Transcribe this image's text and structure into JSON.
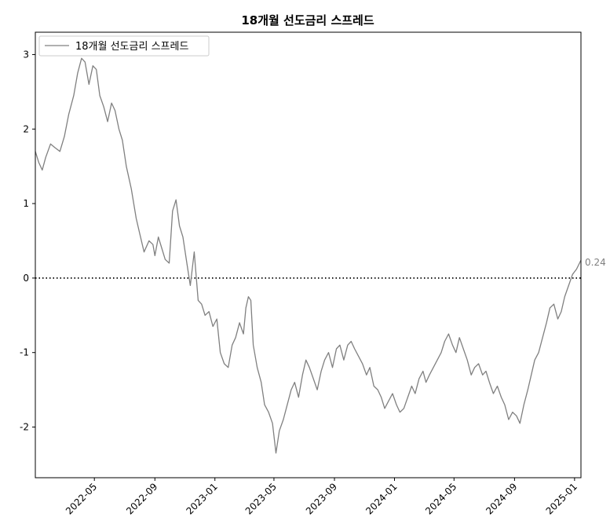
{
  "chart_data": {
    "type": "line",
    "title": "18개월 선도금리 스프레드",
    "xlabel": "",
    "ylabel": "",
    "x_range": [
      "2022-01-01",
      "2025-01-14"
    ],
    "ylim": [
      -2.68,
      3.3
    ],
    "x_ticks": [
      "2022-05",
      "2022-09",
      "2023-01",
      "2023-05",
      "2023-09",
      "2024-01",
      "2024-05",
      "2024-09",
      "2025-01"
    ],
    "y_ticks": [
      3,
      2,
      1,
      0,
      -1,
      -2
    ],
    "grid": false,
    "legend_position": "top-left",
    "reference_line": {
      "y": 0,
      "style": "dotted",
      "color": "#000000"
    },
    "end_label": "0.24",
    "series": [
      {
        "name": "18개월 선도금리 스프레드",
        "color": "#808080",
        "x": [
          "2022-01-01",
          "2022-01-08",
          "2022-01-15",
          "2022-01-22",
          "2022-02-01",
          "2022-02-10",
          "2022-02-20",
          "2022-03-01",
          "2022-03-10",
          "2022-03-20",
          "2022-03-28",
          "2022-04-05",
          "2022-04-12",
          "2022-04-20",
          "2022-04-28",
          "2022-05-05",
          "2022-05-12",
          "2022-05-20",
          "2022-05-28",
          "2022-06-05",
          "2022-06-12",
          "2022-06-20",
          "2022-06-27",
          "2022-07-05",
          "2022-07-15",
          "2022-07-25",
          "2022-08-01",
          "2022-08-10",
          "2022-08-20",
          "2022-08-28",
          "2022-09-01",
          "2022-09-08",
          "2022-09-15",
          "2022-09-22",
          "2022-09-30",
          "2022-10-07",
          "2022-10-14",
          "2022-10-21",
          "2022-10-28",
          "2022-11-05",
          "2022-11-12",
          "2022-11-20",
          "2022-11-28",
          "2022-12-05",
          "2022-12-12",
          "2022-12-20",
          "2022-12-28",
          "2023-01-05",
          "2023-01-12",
          "2023-01-20",
          "2023-01-28",
          "2023-02-05",
          "2023-02-12",
          "2023-02-20",
          "2023-02-28",
          "2023-03-05",
          "2023-03-10",
          "2023-03-15",
          "2023-03-20",
          "2023-03-28",
          "2023-04-05",
          "2023-04-12",
          "2023-04-20",
          "2023-04-28",
          "2023-05-05",
          "2023-05-12",
          "2023-05-20",
          "2023-05-28",
          "2023-06-05",
          "2023-06-12",
          "2023-06-20",
          "2023-06-28",
          "2023-07-05",
          "2023-07-12",
          "2023-07-20",
          "2023-07-28",
          "2023-08-05",
          "2023-08-12",
          "2023-08-20",
          "2023-08-28",
          "2023-09-05",
          "2023-09-12",
          "2023-09-20",
          "2023-09-28",
          "2023-10-05",
          "2023-10-12",
          "2023-10-20",
          "2023-10-28",
          "2023-11-05",
          "2023-11-12",
          "2023-11-20",
          "2023-11-28",
          "2023-12-05",
          "2023-12-12",
          "2023-12-20",
          "2023-12-28",
          "2024-01-05",
          "2024-01-12",
          "2024-01-20",
          "2024-01-28",
          "2024-02-05",
          "2024-02-12",
          "2024-02-20",
          "2024-02-28",
          "2024-03-05",
          "2024-03-12",
          "2024-03-20",
          "2024-03-28",
          "2024-04-05",
          "2024-04-12",
          "2024-04-20",
          "2024-04-28",
          "2024-05-05",
          "2024-05-12",
          "2024-05-20",
          "2024-05-28",
          "2024-06-05",
          "2024-06-12",
          "2024-06-20",
          "2024-06-28",
          "2024-07-05",
          "2024-07-12",
          "2024-07-20",
          "2024-07-28",
          "2024-08-05",
          "2024-08-12",
          "2024-08-20",
          "2024-08-28",
          "2024-09-05",
          "2024-09-12",
          "2024-09-20",
          "2024-09-28",
          "2024-10-05",
          "2024-10-12",
          "2024-10-20",
          "2024-10-28",
          "2024-11-05",
          "2024-11-12",
          "2024-11-20",
          "2024-11-28",
          "2024-12-05",
          "2024-12-12",
          "2024-12-20",
          "2024-12-28",
          "2025-01-05",
          "2025-01-14"
        ],
        "y": [
          1.7,
          1.55,
          1.45,
          1.62,
          1.8,
          1.75,
          1.7,
          1.9,
          2.2,
          2.45,
          2.75,
          2.95,
          2.9,
          2.6,
          2.85,
          2.8,
          2.45,
          2.3,
          2.1,
          2.35,
          2.25,
          2.0,
          1.85,
          1.5,
          1.2,
          0.8,
          0.6,
          0.35,
          0.5,
          0.45,
          0.3,
          0.55,
          0.4,
          0.25,
          0.2,
          0.9,
          1.05,
          0.7,
          0.55,
          0.2,
          -0.1,
          0.35,
          -0.3,
          -0.35,
          -0.5,
          -0.45,
          -0.65,
          -0.55,
          -1.0,
          -1.15,
          -1.2,
          -0.9,
          -0.8,
          -0.6,
          -0.75,
          -0.4,
          -0.25,
          -0.3,
          -0.9,
          -1.2,
          -1.4,
          -1.7,
          -1.8,
          -1.95,
          -2.35,
          -2.05,
          -1.9,
          -1.7,
          -1.5,
          -1.4,
          -1.6,
          -1.3,
          -1.1,
          -1.2,
          -1.35,
          -1.5,
          -1.25,
          -1.1,
          -1.0,
          -1.2,
          -0.95,
          -0.9,
          -1.1,
          -0.9,
          -0.85,
          -0.95,
          -1.05,
          -1.15,
          -1.3,
          -1.2,
          -1.45,
          -1.5,
          -1.6,
          -1.75,
          -1.65,
          -1.55,
          -1.7,
          -1.8,
          -1.75,
          -1.6,
          -1.45,
          -1.55,
          -1.35,
          -1.25,
          -1.4,
          -1.3,
          -1.2,
          -1.1,
          -1.0,
          -0.85,
          -0.75,
          -0.9,
          -1.0,
          -0.8,
          -0.95,
          -1.1,
          -1.3,
          -1.2,
          -1.15,
          -1.3,
          -1.25,
          -1.4,
          -1.55,
          -1.45,
          -1.6,
          -1.7,
          -1.9,
          -1.8,
          -1.85,
          -1.95,
          -1.7,
          -1.5,
          -1.3,
          -1.1,
          -1.0,
          -0.8,
          -0.6,
          -0.4,
          -0.35,
          -0.55,
          -0.45,
          -0.25,
          -0.1,
          0.05,
          0.12,
          0.24
        ]
      }
    ]
  }
}
